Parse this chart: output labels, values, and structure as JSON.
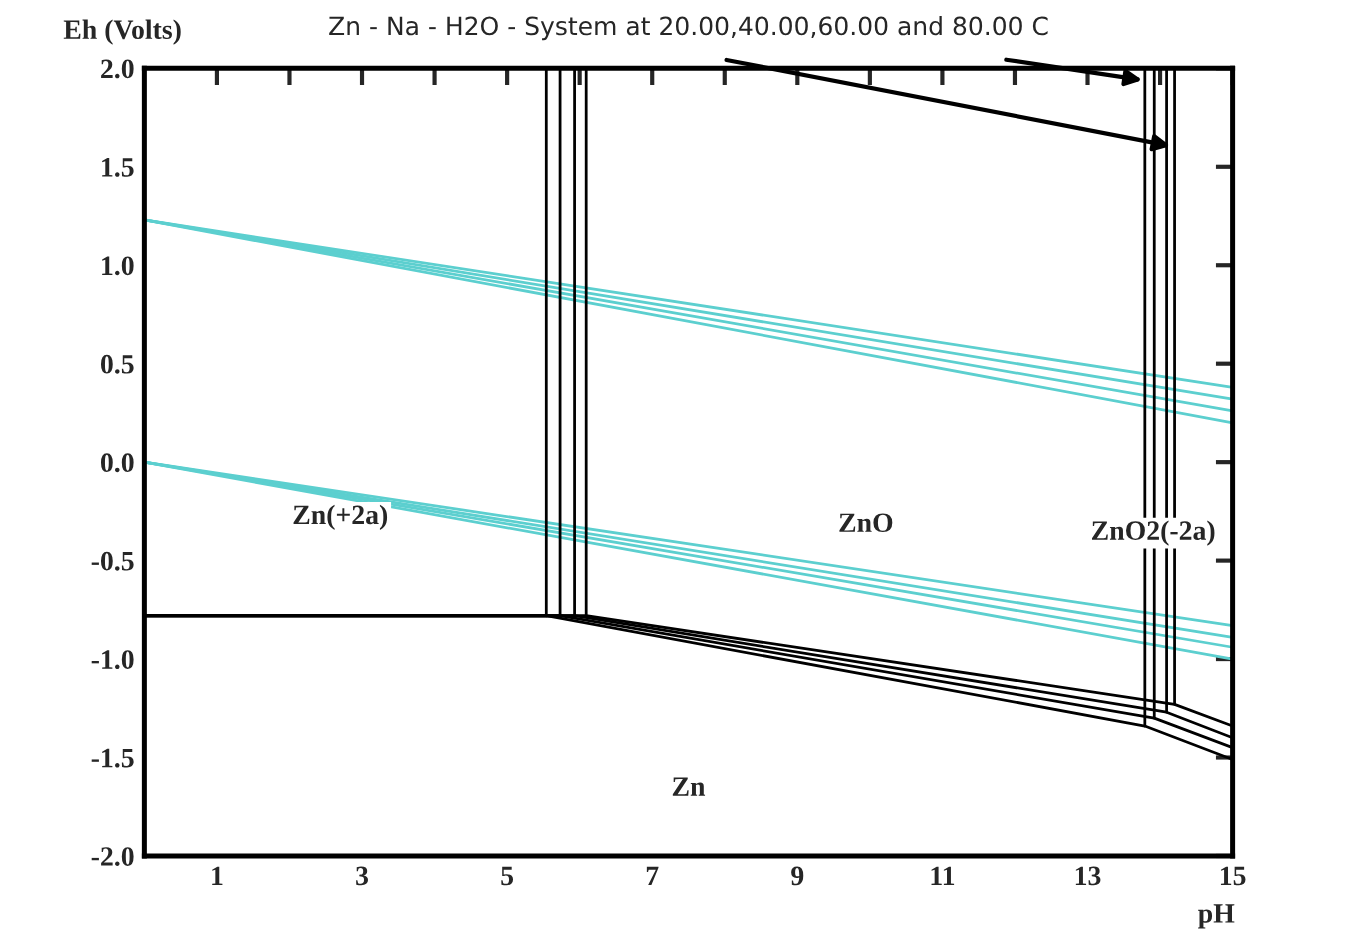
{
  "chart_data": {
    "type": "line",
    "title": "Zn - Na - H2O - System at 20.00,40.00,60.00 and 80.00 C",
    "xlabel": "pH",
    "ylabel": "Eh (Volts)",
    "xlim": [
      0,
      15
    ],
    "ylim": [
      -2.0,
      2.0
    ],
    "xticks": [
      1,
      {
        "value": 2,
        "label": null
      },
      3,
      {
        "value": 4,
        "label": null
      },
      5,
      {
        "value": 6,
        "label": null
      },
      7,
      {
        "value": 8,
        "label": null
      },
      9,
      {
        "value": 10,
        "label": null
      },
      11,
      {
        "value": 12,
        "label": null
      },
      13,
      {
        "value": 14,
        "label": null
      },
      15
    ],
    "yticks": [
      {
        "value": -2.0,
        "label": "-2.0"
      },
      {
        "value": -1.5,
        "label": "-1.5"
      },
      {
        "value": -1.0,
        "label": "-1.0"
      },
      {
        "value": -0.5,
        "label": "-0.5"
      },
      {
        "value": 0.0,
        "label": "0.0"
      },
      {
        "value": 0.5,
        "label": "0.5"
      },
      {
        "value": 1.0,
        "label": "1.0"
      },
      {
        "value": 1.5,
        "label": "1.5"
      },
      {
        "value": 2.0,
        "label": "2.0"
      }
    ],
    "grid": false,
    "legend": false,
    "marker": "none",
    "line_style": "solid",
    "series": [
      {
        "color": "#5ccfcf",
        "x": [
          0,
          15
        ],
        "values": [
          1.23,
          0.38
        ]
      },
      {
        "color": "#5ccfcf",
        "x": [
          0,
          15
        ],
        "values": [
          1.23,
          0.32
        ]
      },
      {
        "color": "#5ccfcf",
        "x": [
          0,
          15
        ],
        "values": [
          1.23,
          0.26
        ]
      },
      {
        "color": "#5ccfcf",
        "x": [
          0,
          15
        ],
        "values": [
          1.23,
          0.2
        ]
      },
      {
        "color": "#5ccfcf",
        "x": [
          0,
          15
        ],
        "values": [
          0.0,
          -0.83
        ]
      },
      {
        "color": "#5ccfcf",
        "x": [
          0,
          15
        ],
        "values": [
          0.0,
          -0.89
        ]
      },
      {
        "color": "#5ccfcf",
        "x": [
          0,
          15
        ],
        "values": [
          0.0,
          -0.94
        ]
      },
      {
        "color": "#5ccfcf",
        "x": [
          0,
          15
        ],
        "values": [
          0.0,
          -1.0
        ]
      },
      {
        "color": "#000000",
        "x": [
          0,
          5.54,
          13.79,
          15
        ],
        "values": [
          -0.78,
          -0.78,
          -1.34,
          -1.51
        ]
      },
      {
        "color": "#000000",
        "x": [
          0,
          5.73,
          13.92,
          15
        ],
        "values": [
          -0.78,
          -0.78,
          -1.3,
          -1.45
        ]
      },
      {
        "color": "#000000",
        "x": [
          0,
          5.93,
          14.09,
          15
        ],
        "values": [
          -0.78,
          -0.78,
          -1.27,
          -1.4
        ]
      },
      {
        "color": "#000000",
        "x": [
          0,
          6.09,
          14.2,
          15
        ],
        "values": [
          -0.78,
          -0.78,
          -1.23,
          -1.34
        ]
      },
      {
        "color": "#000000",
        "x": [
          5.54,
          5.54
        ],
        "values": [
          -0.78,
          2.0
        ]
      },
      {
        "color": "#000000",
        "x": [
          5.73,
          5.73
        ],
        "values": [
          -0.78,
          2.0
        ]
      },
      {
        "color": "#000000",
        "x": [
          5.93,
          5.93
        ],
        "values": [
          -0.78,
          2.0
        ]
      },
      {
        "color": "#000000",
        "x": [
          6.09,
          6.09
        ],
        "values": [
          -0.78,
          2.0
        ]
      },
      {
        "color": "#000000",
        "x": [
          13.79,
          13.79
        ],
        "values": [
          -1.34,
          2.0
        ]
      },
      {
        "color": "#000000",
        "x": [
          13.92,
          13.92
        ],
        "values": [
          -1.3,
          2.0
        ]
      },
      {
        "color": "#000000",
        "x": [
          14.09,
          14.09
        ],
        "values": [
          -1.27,
          2.0
        ]
      },
      {
        "color": "#000000",
        "x": [
          14.2,
          14.2
        ],
        "values": [
          -1.23,
          2.0
        ]
      }
    ],
    "annotations": [
      "Zn(+2a)",
      "ZnO",
      "ZnO2(-2a)",
      "Zn"
    ]
  }
}
